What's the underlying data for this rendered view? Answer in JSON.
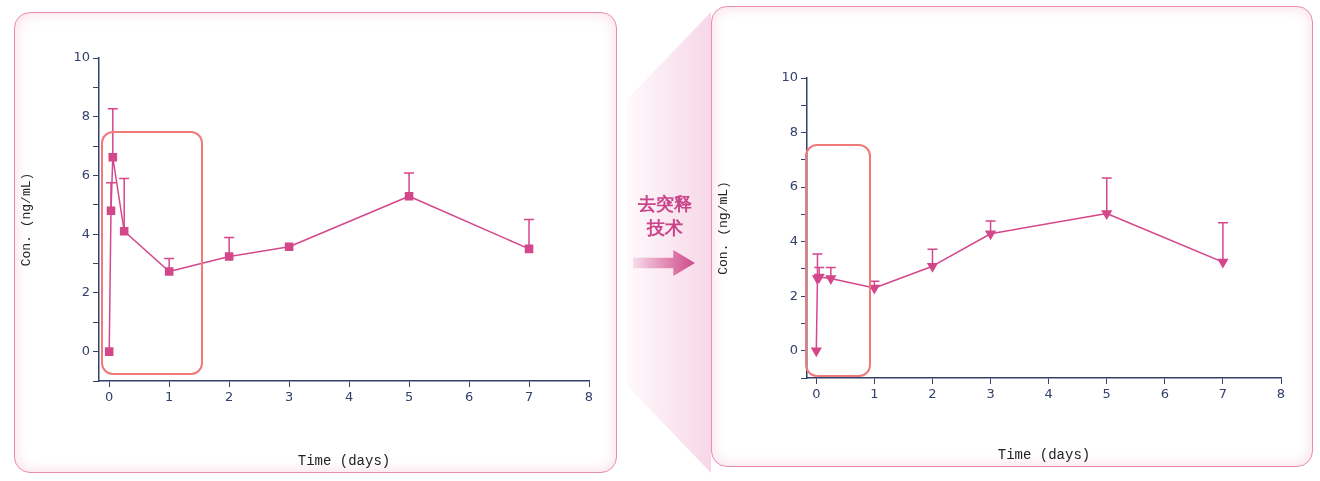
{
  "chart_data": [
    {
      "type": "line",
      "xlabel": "Time (days)",
      "ylabel": "Con. (ng/mL)",
      "marker": "square",
      "x": [
        0,
        0.03,
        0.06,
        0.25,
        1,
        2,
        3,
        5,
        7
      ],
      "series": [
        {
          "color": "#d4478b",
          "values": [
            0,
            4.8,
            6.62,
            4.1,
            2.73,
            3.24,
            3.57,
            5.29,
            3.5
          ],
          "errors": [
            null,
            [
              4.8,
              5.75
            ],
            [
              6.62,
              8.27
            ],
            [
              4.1,
              5.9
            ],
            [
              2.73,
              3.17
            ],
            [
              3.24,
              3.89
            ],
            null,
            [
              5.29,
              6.08
            ],
            [
              3.5,
              4.5
            ]
          ]
        }
      ],
      "xlim": [
        -0.17,
        8
      ],
      "xticks": [
        0,
        1,
        2,
        3,
        4,
        5,
        6,
        7,
        8
      ],
      "ylim": [
        -1,
        10
      ],
      "yticks": [
        {
          "value": -1,
          "label": null
        },
        0,
        {
          "value": 1,
          "label": null
        },
        2,
        {
          "value": 3,
          "label": null
        },
        4,
        {
          "value": 5,
          "label": null
        },
        6,
        {
          "value": 7,
          "label": null
        },
        8,
        {
          "value": 9,
          "label": null
        },
        10
      ]
    },
    {
      "type": "other",
      "annotations": [
        "去突释技术"
      ]
    },
    {
      "type": "line",
      "xlabel": "Time (days)",
      "ylabel": "Con. (ng/mL)",
      "marker": "triangle",
      "x": [
        0,
        0.02,
        0.05,
        0.25,
        1,
        2,
        3,
        5,
        7
      ],
      "series": [
        {
          "color": "#d4478b",
          "values": [
            0,
            2.65,
            2.7,
            2.65,
            2.3,
            3.1,
            4.29,
            5.03,
            3.25
          ],
          "errors": [
            null,
            [
              2.65,
              3.55
            ],
            [
              2.7,
              3.05
            ],
            [
              2.65,
              3.05
            ],
            [
              2.3,
              2.55
            ],
            [
              3.1,
              3.72
            ],
            [
              4.29,
              4.76
            ],
            [
              5.03,
              6.33
            ],
            [
              3.25,
              4.69
            ]
          ]
        }
      ],
      "xlim": [
        -0.16,
        8
      ],
      "xticks": [
        0,
        1,
        2,
        3,
        4,
        5,
        6,
        7,
        8
      ],
      "ylim": [
        -1,
        10
      ],
      "yticks": [
        {
          "value": -1,
          "label": null
        },
        0,
        {
          "value": 1,
          "label": null
        },
        2,
        {
          "value": 3,
          "label": null
        },
        4,
        {
          "value": 5,
          "label": null
        },
        6,
        {
          "value": 7,
          "label": null
        },
        8,
        {
          "value": 9,
          "label": null
        },
        10
      ]
    }
  ]
}
